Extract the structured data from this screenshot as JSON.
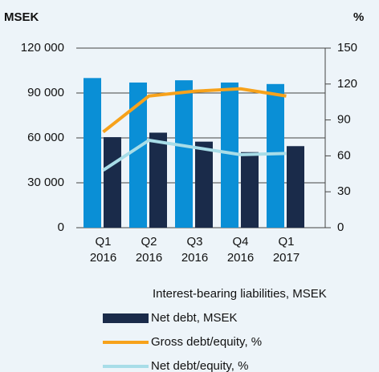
{
  "chart_data": {
    "type": "bar_line",
    "y_label": "MSEK",
    "y2_label": "%",
    "categories": [
      [
        "Q1",
        "2016"
      ],
      [
        "Q2",
        "2016"
      ],
      [
        "Q3",
        "2016"
      ],
      [
        "Q4",
        "2016"
      ],
      [
        "Q1",
        "2017"
      ]
    ],
    "series": [
      {
        "name": "Interest-bearing liabilities, MSEK",
        "type": "bar",
        "color": "#0a8fd6",
        "values": [
          100000,
          97000,
          98500,
          97000,
          96000
        ]
      },
      {
        "name": "Net debt, MSEK",
        "type": "bar",
        "color": "#1a2b4a",
        "values": [
          60500,
          63500,
          57500,
          50500,
          54500
        ]
      },
      {
        "name": "Gross debt/equity, %",
        "type": "line",
        "axis": "y2",
        "color": "#f7a21b",
        "values": [
          80,
          110,
          114,
          116,
          110
        ]
      },
      {
        "name": "Net debt/equity, %",
        "type": "line",
        "axis": "y2",
        "color": "#a8dde8",
        "values": [
          48,
          73,
          67,
          61,
          62
        ]
      }
    ],
    "ylim": [
      0,
      120000
    ],
    "yticks": [
      {
        "value": 0,
        "label": "0"
      },
      {
        "value": 30000,
        "label": "30 000"
      },
      {
        "value": 60000,
        "label": "60 000"
      },
      {
        "value": 90000,
        "label": "90 000"
      },
      {
        "value": 120000,
        "label": "120 000"
      }
    ],
    "y2lim": [
      0,
      150
    ],
    "y2ticks": [
      0,
      30,
      60,
      90,
      120,
      150
    ],
    "grid": true
  }
}
